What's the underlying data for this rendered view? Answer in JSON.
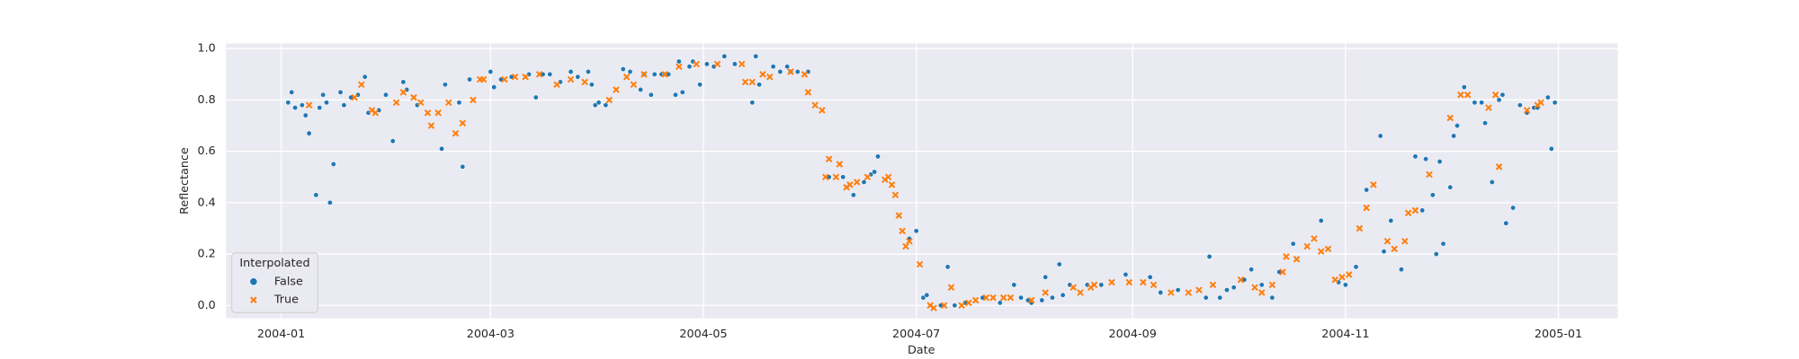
{
  "chart_data": {
    "type": "scatter",
    "x_label": "Date",
    "y_label": "Reflectance",
    "xlim": [
      -15.8,
      383
    ],
    "ylim": [
      -0.05,
      1.02
    ],
    "xticks": [
      {
        "value": 0,
        "label": "2004-01"
      },
      {
        "value": 60,
        "label": "2004-03"
      },
      {
        "value": 121,
        "label": "2004-05"
      },
      {
        "value": 182,
        "label": "2004-07"
      },
      {
        "value": 244,
        "label": "2004-09"
      },
      {
        "value": 305,
        "label": "2004-11"
      },
      {
        "value": 366,
        "label": "2005-01"
      }
    ],
    "yticks": [
      {
        "value": 0,
        "label": "0.0"
      },
      {
        "value": 0.2,
        "label": "0.2"
      },
      {
        "value": 0.4,
        "label": "0.4"
      },
      {
        "value": 0.6,
        "label": "0.6"
      },
      {
        "value": 0.8,
        "label": "0.8"
      },
      {
        "value": 1,
        "label": "1.0"
      }
    ],
    "grid": true,
    "legend_title": "Interpolated",
    "legend_corner": "lower left",
    "series": [
      {
        "name": "False",
        "color": "#1f77b4",
        "marker": "circle",
        "x": [
          2,
          3,
          4,
          6,
          7,
          8,
          10,
          11,
          12,
          13,
          14,
          15,
          17,
          18,
          20,
          22,
          24,
          25,
          28,
          30,
          32,
          35,
          36,
          39,
          46,
          47,
          51,
          52,
          54,
          60,
          61,
          63,
          66,
          71,
          73,
          75,
          77,
          80,
          83,
          85,
          88,
          89,
          90,
          91,
          93,
          98,
          100,
          103,
          104,
          106,
          107,
          109,
          110,
          111,
          113,
          114,
          115,
          117,
          118,
          120,
          122,
          124,
          127,
          130,
          135,
          136,
          137,
          141,
          143,
          145,
          146,
          148,
          151,
          157,
          161,
          164,
          167,
          169,
          170,
          171,
          180,
          182,
          184,
          185,
          189,
          191,
          193,
          196,
          201,
          206,
          210,
          212,
          214,
          215,
          218,
          219,
          221,
          223,
          224,
          226,
          231,
          235,
          242,
          249,
          252,
          257,
          265,
          266,
          269,
          271,
          273,
          276,
          278,
          281,
          284,
          286,
          290,
          298,
          303,
          305,
          308,
          311,
          315,
          316,
          318,
          321,
          325,
          327,
          328,
          330,
          331,
          332,
          333,
          335,
          336,
          337,
          339,
          342,
          344,
          345,
          347,
          349,
          350,
          351,
          353,
          355,
          357,
          359,
          360,
          363,
          364,
          365
        ],
        "values": [
          0.79,
          0.83,
          0.77,
          0.78,
          0.74,
          0.67,
          0.43,
          0.77,
          0.82,
          0.79,
          0.4,
          0.55,
          0.83,
          0.78,
          0.81,
          0.82,
          0.89,
          0.75,
          0.76,
          0.82,
          0.64,
          0.87,
          0.84,
          0.78,
          0.61,
          0.86,
          0.79,
          0.54,
          0.88,
          0.91,
          0.85,
          0.88,
          0.89,
          0.9,
          0.81,
          0.9,
          0.9,
          0.87,
          0.91,
          0.89,
          0.91,
          0.86,
          0.78,
          0.79,
          0.78,
          0.92,
          0.91,
          0.84,
          0.9,
          0.82,
          0.9,
          0.9,
          0.9,
          0.9,
          0.82,
          0.95,
          0.83,
          0.93,
          0.95,
          0.86,
          0.94,
          0.93,
          0.97,
          0.94,
          0.79,
          0.97,
          0.86,
          0.93,
          0.91,
          0.93,
          0.91,
          0.91,
          0.91,
          0.5,
          0.5,
          0.43,
          0.48,
          0.51,
          0.52,
          0.58,
          0.26,
          0.29,
          0.03,
          0.04,
          0.0,
          0.15,
          0.0,
          0.01,
          0.03,
          0.01,
          0.08,
          0.03,
          0.02,
          0.01,
          0.02,
          0.11,
          0.03,
          0.16,
          0.04,
          0.08,
          0.08,
          0.08,
          0.12,
          0.11,
          0.05,
          0.06,
          0.03,
          0.19,
          0.03,
          0.06,
          0.07,
          0.1,
          0.14,
          0.08,
          0.03,
          0.13,
          0.24,
          0.33,
          0.09,
          0.08,
          0.15,
          0.45,
          0.66,
          0.21,
          0.33,
          0.14,
          0.58,
          0.37,
          0.57,
          0.43,
          0.2,
          0.56,
          0.24,
          0.46,
          0.66,
          0.7,
          0.85,
          0.79,
          0.79,
          0.71,
          0.48,
          0.8,
          0.82,
          0.32,
          0.38,
          0.78,
          0.75,
          0.77,
          0.77,
          0.81,
          0.61,
          0.79
        ]
      },
      {
        "name": "True",
        "color": "#ff7f0e",
        "marker": "x",
        "x": [
          8,
          21,
          23,
          26,
          27,
          33,
          35,
          38,
          40,
          42,
          43,
          45,
          48,
          50,
          52,
          55,
          57,
          58,
          64,
          67,
          70,
          74,
          79,
          83,
          87,
          94,
          96,
          99,
          101,
          104,
          110,
          114,
          119,
          125,
          132,
          133,
          135,
          138,
          140,
          146,
          150,
          151,
          153,
          155,
          156,
          157,
          159,
          160,
          162,
          163,
          165,
          168,
          173,
          174,
          175,
          176,
          177,
          178,
          179,
          180,
          183,
          186,
          187,
          190,
          192,
          195,
          197,
          199,
          202,
          204,
          207,
          209,
          215,
          219,
          227,
          229,
          232,
          233,
          238,
          243,
          247,
          250,
          255,
          260,
          263,
          267,
          275,
          279,
          281,
          284,
          287,
          288,
          291,
          294,
          296,
          298,
          300,
          302,
          304,
          306,
          309,
          311,
          313,
          317,
          319,
          322,
          323,
          325,
          329,
          335,
          338,
          340,
          346,
          348,
          349,
          357,
          360,
          361
        ],
        "values": [
          0.78,
          0.81,
          0.86,
          0.76,
          0.75,
          0.79,
          0.83,
          0.81,
          0.79,
          0.75,
          0.7,
          0.75,
          0.79,
          0.67,
          0.71,
          0.8,
          0.88,
          0.88,
          0.88,
          0.89,
          0.89,
          0.9,
          0.86,
          0.88,
          0.87,
          0.8,
          0.84,
          0.89,
          0.86,
          0.9,
          0.9,
          0.93,
          0.94,
          0.94,
          0.94,
          0.87,
          0.87,
          0.9,
          0.89,
          0.91,
          0.9,
          0.83,
          0.78,
          0.76,
          0.5,
          0.57,
          0.5,
          0.55,
          0.46,
          0.47,
          0.48,
          0.5,
          0.49,
          0.5,
          0.47,
          0.43,
          0.35,
          0.29,
          0.23,
          0.25,
          0.16,
          0.0,
          -0.01,
          0.0,
          0.07,
          0.0,
          0.01,
          0.02,
          0.03,
          0.03,
          0.03,
          0.03,
          0.02,
          0.05,
          0.07,
          0.05,
          0.07,
          0.08,
          0.09,
          0.09,
          0.09,
          0.08,
          0.05,
          0.05,
          0.06,
          0.08,
          0.1,
          0.07,
          0.05,
          0.08,
          0.13,
          0.19,
          0.18,
          0.23,
          0.26,
          0.21,
          0.22,
          0.1,
          0.11,
          0.12,
          0.3,
          0.38,
          0.47,
          0.25,
          0.22,
          0.25,
          0.36,
          0.37,
          0.51,
          0.73,
          0.82,
          0.82,
          0.77,
          0.82,
          0.54,
          0.76,
          0.78,
          0.79
        ]
      }
    ]
  }
}
